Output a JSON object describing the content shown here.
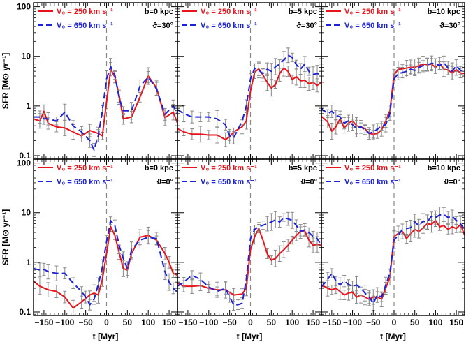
{
  "chart_data": {
    "type": "line",
    "xlabel": "t [Myr]",
    "ylabel": "SFR [M⊙ yr⁻¹]",
    "xlim": [
      -175,
      170
    ],
    "ylim": [
      0.085,
      120
    ],
    "yscale": "log",
    "x_ticks": [
      -150,
      -100,
      -50,
      0,
      50,
      100,
      150
    ],
    "x_tick_labels": [
      "−150",
      "−100",
      "−50",
      "0",
      "50",
      "100",
      "150"
    ],
    "y_ticks": [
      0.1,
      1,
      10,
      100
    ],
    "y_tick_labels": [
      "0.1",
      "1",
      "10",
      "100"
    ],
    "vline_x": 0,
    "series_meta": [
      {
        "name": "V₀ = 250 km s⁻¹",
        "color": "#e8141c",
        "style": "solid"
      },
      {
        "name": "V₀ = 650 km s⁻¹",
        "color": "#1c22d6",
        "style": "dashed"
      }
    ],
    "panels": [
      {
        "id": "b0-t30",
        "b_label": "b=0 kpc",
        "theta_label": "ϑ=30°",
        "series": [
          {
            "x": [
              -175,
              -160,
              -150,
              -140,
              -120,
              -100,
              -80,
              -60,
              -40,
              -20,
              -10,
              0,
              10,
              20,
              30,
              40,
              60,
              80,
              100,
              120,
              140,
              160,
              170
            ],
            "y": [
              0.55,
              0.5,
              0.78,
              0.45,
              0.38,
              0.36,
              0.3,
              0.25,
              0.32,
              0.28,
              0.25,
              1.2,
              5.5,
              3.8,
              1.7,
              0.55,
              0.6,
              1.5,
              4,
              2.3,
              0.58,
              0.75,
              0.45
            ]
          },
          {
            "x": [
              -175,
              -160,
              -150,
              -140,
              -120,
              -100,
              -80,
              -60,
              -40,
              -30,
              -20,
              -10,
              0,
              10,
              20,
              30,
              40,
              60,
              80,
              100,
              120,
              140,
              160,
              170
            ],
            "y": [
              0.6,
              0.6,
              0.55,
              0.55,
              0.5,
              0.75,
              0.4,
              0.3,
              0.2,
              0.13,
              0.25,
              0.8,
              3.5,
              6.2,
              4.2,
              1.5,
              0.8,
              0.8,
              2.5,
              3.8,
              2.2,
              0.68,
              1.0,
              0.7
            ]
          }
        ]
      },
      {
        "id": "b5-t30",
        "b_label": "b=5 kpc",
        "theta_label": "ϑ=30°",
        "series": [
          {
            "x": [
              -175,
              -160,
              -140,
              -120,
              -100,
              -80,
              -60,
              -50,
              -40,
              -20,
              -10,
              0,
              10,
              20,
              30,
              40,
              50,
              60,
              70,
              80,
              90,
              100,
              110,
              120,
              130,
              140,
              150,
              160,
              170
            ],
            "y": [
              0.35,
              0.3,
              0.27,
              0.27,
              0.26,
              0.26,
              0.21,
              0.24,
              0.3,
              0.38,
              0.5,
              2.0,
              4.8,
              5.6,
              4.2,
              3.0,
              2.3,
              2.7,
              4.5,
              5.8,
              5.0,
              3.4,
              3.9,
              3.2,
              3.3,
              2.8,
              3.0,
              2.6,
              3.0
            ]
          },
          {
            "x": [
              -175,
              -160,
              -140,
              -120,
              -100,
              -80,
              -60,
              -50,
              -40,
              -20,
              -10,
              0,
              10,
              20,
              30,
              40,
              50,
              60,
              70,
              80,
              90,
              100,
              110,
              120,
              130,
              140,
              150,
              160,
              170
            ],
            "y": [
              0.85,
              0.7,
              0.6,
              0.6,
              0.6,
              0.55,
              0.42,
              0.25,
              0.23,
              0.5,
              1.0,
              3.5,
              5.8,
              5.2,
              4.5,
              5.5,
              5.0,
              6.2,
              7.0,
              8.5,
              10.5,
              9.5,
              6.8,
              5.5,
              7.0,
              5.0,
              4.3,
              4.5,
              4.3
            ]
          }
        ]
      },
      {
        "id": "b10-t30",
        "b_label": "b=10 kpc",
        "theta_label": "ϑ=30°",
        "series": [
          {
            "x": [
              -175,
              -160,
              -150,
              -140,
              -130,
              -120,
              -110,
              -100,
              -90,
              -80,
              -70,
              -60,
              -50,
              -40,
              -30,
              -20,
              -10,
              0,
              10,
              20,
              30,
              40,
              50,
              60,
              70,
              80,
              90,
              100,
              110,
              120,
              130,
              140,
              150,
              160,
              170
            ],
            "y": [
              0.62,
              0.48,
              0.31,
              0.38,
              0.55,
              0.36,
              0.45,
              0.5,
              0.4,
              0.38,
              0.35,
              0.28,
              0.27,
              0.28,
              0.33,
              0.5,
              0.8,
              4.2,
              5.5,
              5.6,
              5.8,
              6.0,
              6.0,
              6.5,
              7.0,
              6.8,
              7.0,
              6.0,
              7.2,
              5.5,
              5.3,
              4.6,
              5.4,
              4.6,
              4.5
            ]
          },
          {
            "x": [
              -175,
              -160,
              -150,
              -140,
              -130,
              -120,
              -110,
              -100,
              -90,
              -80,
              -70,
              -60,
              -50,
              -40,
              -30,
              -20,
              -10,
              0,
              10,
              20,
              30,
              40,
              50,
              60,
              70,
              80,
              90,
              100,
              110,
              120,
              130,
              140,
              150,
              160,
              170
            ],
            "y": [
              0.9,
              0.7,
              0.78,
              0.65,
              0.6,
              0.45,
              0.5,
              0.42,
              0.35,
              0.38,
              0.33,
              0.28,
              0.3,
              0.34,
              0.4,
              0.42,
              0.7,
              3.5,
              4.5,
              4.7,
              5.0,
              5.5,
              5.2,
              6.0,
              6.5,
              6.8,
              7.2,
              7.3,
              6.5,
              7.5,
              5.8,
              5.0,
              6.5,
              5.2,
              4.7
            ]
          }
        ]
      },
      {
        "id": "b0-t0",
        "b_label": "b=0 kpc",
        "theta_label": "ϑ=0°",
        "series": [
          {
            "x": [
              -175,
              -160,
              -140,
              -120,
              -100,
              -80,
              -60,
              -40,
              -30,
              -20,
              -10,
              0,
              10,
              20,
              30,
              40,
              50,
              60,
              80,
              100,
              120,
              140,
              150,
              160,
              170
            ],
            "y": [
              0.42,
              0.33,
              0.28,
              0.26,
              0.2,
              0.12,
              0.16,
              0.22,
              0.24,
              0.22,
              0.45,
              1.5,
              5.2,
              3.5,
              1.6,
              0.75,
              0.7,
              1.5,
              3.2,
              3.5,
              2.8,
              1.5,
              1.0,
              0.6,
              0.55
            ]
          },
          {
            "x": [
              -175,
              -160,
              -150,
              -140,
              -120,
              -100,
              -80,
              -60,
              -50,
              -40,
              -30,
              -20,
              -10,
              0,
              10,
              20,
              30,
              40,
              50,
              60,
              80,
              100,
              120,
              140,
              150,
              160,
              170
            ],
            "y": [
              0.75,
              0.7,
              0.72,
              0.65,
              0.6,
              0.6,
              0.38,
              0.26,
              0.2,
              0.14,
              0.18,
              0.35,
              0.8,
              2.6,
              6.9,
              5.5,
              2.2,
              1.2,
              0.75,
              1.8,
              2.8,
              3.2,
              3.0,
              0.65,
              0.4,
              0.3,
              0.25
            ]
          }
        ]
      },
      {
        "id": "b5-t0",
        "b_label": "b=5 kpc",
        "theta_label": "ϑ=0°",
        "series": [
          {
            "x": [
              -175,
              -160,
              -140,
              -120,
              -100,
              -80,
              -60,
              -40,
              -20,
              -10,
              0,
              10,
              20,
              30,
              40,
              50,
              60,
              70,
              80,
              90,
              100,
              110,
              120,
              130,
              140,
              150,
              160,
              170
            ],
            "y": [
              0.38,
              0.33,
              0.33,
              0.34,
              0.3,
              0.28,
              0.28,
              0.22,
              0.23,
              0.3,
              1.8,
              3.3,
              4.8,
              2.8,
              1.5,
              1.1,
              1.2,
              1.5,
              1.8,
              2.2,
              2.8,
              3.5,
              4.2,
              4.3,
              2.8,
              2.2,
              2.3,
              2.2
            ]
          },
          {
            "x": [
              -175,
              -160,
              -140,
              -120,
              -100,
              -80,
              -60,
              -50,
              -40,
              -30,
              -20,
              -10,
              0,
              10,
              20,
              30,
              40,
              50,
              60,
              70,
              80,
              90,
              100,
              110,
              120,
              130,
              140,
              150,
              160,
              170
            ],
            "y": [
              0.33,
              0.4,
              0.55,
              0.45,
              0.32,
              0.26,
              0.3,
              0.2,
              0.14,
              0.14,
              0.15,
              0.45,
              3.0,
              4.6,
              5.2,
              5.6,
              6.0,
              6.5,
              7.2,
              6.5,
              8.0,
              7.5,
              7.0,
              5.5,
              4.2,
              4.5,
              4.0,
              3.3,
              3.0,
              2.2
            ]
          }
        ]
      },
      {
        "id": "b10-t0",
        "b_label": "b=10 kpc",
        "theta_label": "ϑ=0°",
        "series": [
          {
            "x": [
              -175,
              -160,
              -150,
              -140,
              -130,
              -120,
              -110,
              -100,
              -90,
              -80,
              -70,
              -60,
              -50,
              -40,
              -30,
              -20,
              -10,
              0,
              10,
              20,
              30,
              40,
              50,
              60,
              70,
              80,
              90,
              100,
              110,
              120,
              130,
              140,
              150,
              160,
              170
            ],
            "y": [
              0.35,
              0.3,
              0.28,
              0.3,
              0.26,
              0.22,
              0.24,
              0.25,
              0.2,
              0.22,
              0.2,
              0.18,
              0.2,
              0.2,
              0.18,
              0.3,
              0.5,
              3.3,
              3.8,
              4.2,
              3.0,
              3.8,
              4.6,
              4.2,
              5.0,
              6.0,
              5.8,
              7.0,
              5.2,
              5.5,
              4.6,
              5.2,
              4.8,
              5.8,
              3.5
            ]
          },
          {
            "x": [
              -175,
              -160,
              -150,
              -140,
              -130,
              -120,
              -110,
              -100,
              -90,
              -80,
              -70,
              -60,
              -50,
              -40,
              -30,
              -20,
              -10,
              0,
              10,
              20,
              30,
              40,
              50,
              60,
              70,
              80,
              90,
              100,
              110,
              120,
              130,
              140,
              150,
              160,
              170
            ],
            "y": [
              0.32,
              0.45,
              0.6,
              0.42,
              0.35,
              0.42,
              0.36,
              0.33,
              0.35,
              0.3,
              0.24,
              0.2,
              0.15,
              0.22,
              0.2,
              0.35,
              0.6,
              2.8,
              3.5,
              4.6,
              4.8,
              5.0,
              6.5,
              5.5,
              6.8,
              6.5,
              8.5,
              8.0,
              9.0,
              9.2,
              8.0,
              8.5,
              7.0,
              6.0,
              4.6
            ]
          }
        ]
      }
    ]
  }
}
